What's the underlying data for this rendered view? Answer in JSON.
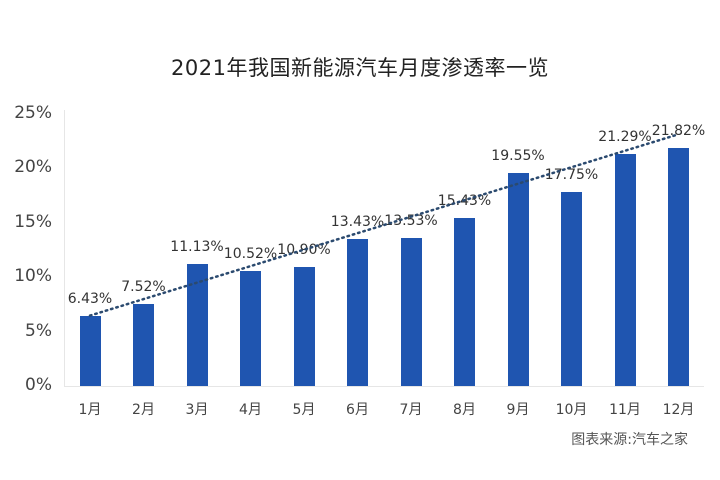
{
  "title": "2021年我国新能源汽车月度渗透率一览",
  "source": "图表来源:汽车之家",
  "colors": {
    "bar": "#1f55b0",
    "trendline": "#2b4a6f",
    "text": "#333333"
  },
  "chart_data": {
    "type": "bar",
    "title": "2021年我国新能源汽车月度渗透率一览",
    "xlabel": "",
    "ylabel": "",
    "categories": [
      "1月",
      "2月",
      "3月",
      "4月",
      "5月",
      "6月",
      "7月",
      "8月",
      "9月",
      "10月",
      "11月",
      "12月"
    ],
    "values": [
      6.43,
      7.52,
      11.13,
      10.52,
      10.9,
      13.43,
      13.53,
      15.43,
      19.55,
      17.75,
      21.29,
      21.82
    ],
    "value_labels": [
      "6.43%",
      "7.52%",
      "11.13%",
      "10.52%",
      "10.90%",
      "13.43%",
      "13.53%",
      "15.43%",
      "19.55%",
      "17.75%",
      "21.29%",
      "21.82%"
    ],
    "yticks": [
      "0%",
      "5%",
      "10%",
      "15%",
      "20%",
      "25%"
    ],
    "ylim": [
      0,
      25
    ],
    "grid": false,
    "trendline": {
      "type": "linear",
      "style": "dotted"
    },
    "annotations": [
      "图表来源:汽车之家"
    ]
  }
}
